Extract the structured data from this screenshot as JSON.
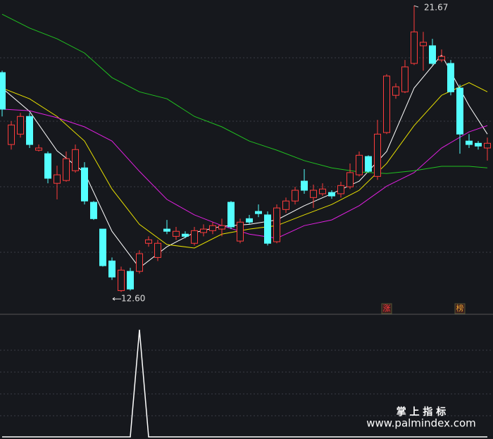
{
  "chart_data": [
    {
      "type": "candlestick",
      "up_color": "#ff3c3c",
      "down_color": "#54ffff",
      "open": [
        19.55,
        17.27,
        17.6,
        18.16,
        17.09,
        16.98,
        16.04,
        16.13,
        16.44,
        16.53,
        15.44,
        14.59,
        13.58,
        12.64,
        13.25,
        13.25,
        14.14,
        13.69,
        14.59,
        14.36,
        14.43,
        14.14,
        14.48,
        14.54,
        14.59,
        15.44,
        14.21,
        14.92,
        15.15,
        15.04,
        14.19,
        15.21,
        15.48,
        16.11,
        15.59,
        15.71,
        15.75,
        15.71,
        15.93,
        16.31,
        16.89,
        16.26,
        17.65,
        18.83,
        18.94,
        19.84,
        20.4,
        20.4,
        19.95,
        19.84,
        19.06,
        17.38,
        17.31,
        17.16
      ],
      "close": [
        18.39,
        17.89,
        18.16,
        17.27,
        17.16,
        16.2,
        16.31,
        16.82,
        17.11,
        15.48,
        14.92,
        13.43,
        13.07,
        13.29,
        12.69,
        13.81,
        14.25,
        14.14,
        14.52,
        14.52,
        14.36,
        14.54,
        14.59,
        14.7,
        14.7,
        14.66,
        14.81,
        14.81,
        15.08,
        14.14,
        15.26,
        15.48,
        15.82,
        15.82,
        15.82,
        15.86,
        15.64,
        15.97,
        16.38,
        16.93,
        16.42,
        17.6,
        19.44,
        19.1,
        19.73,
        20.84,
        20.51,
        19.84,
        20.06,
        18.94,
        17.6,
        17.27,
        17.22,
        17.31
      ],
      "high": [
        19.61,
        18.01,
        18.27,
        18.27,
        17.27,
        17.05,
        16.6,
        17.05,
        17.27,
        16.71,
        15.48,
        14.59,
        13.69,
        13.4,
        13.36,
        13.92,
        14.36,
        14.25,
        14.88,
        14.66,
        14.52,
        14.66,
        14.74,
        14.81,
        14.92,
        15.48,
        14.92,
        15.04,
        15.37,
        15.15,
        15.37,
        15.59,
        15.93,
        16.49,
        16.0,
        16.04,
        15.82,
        16.09,
        16.67,
        17.05,
        16.93,
        18.05,
        19.5,
        19.21,
        19.95,
        21.67,
        20.84,
        20.62,
        20.28,
        19.95,
        19.17,
        17.6,
        17.38,
        17.49
      ],
      "low": [
        18.16,
        17.11,
        17.49,
        17.16,
        17.05,
        16.04,
        15.53,
        16.09,
        16.38,
        15.37,
        14.88,
        13.4,
        12.98,
        12.6,
        12.64,
        13.18,
        14.03,
        13.58,
        14.43,
        14.25,
        14.3,
        14.07,
        14.36,
        14.43,
        14.36,
        14.59,
        14.14,
        14.74,
        14.97,
        14.07,
        14.14,
        15.1,
        15.37,
        15.71,
        15.26,
        15.64,
        15.55,
        15.59,
        15.86,
        16.26,
        16.38,
        16.15,
        17.6,
        18.72,
        18.9,
        19.79,
        19.61,
        19.79,
        19.88,
        18.83,
        16.98,
        17.16,
        17.11,
        16.76
      ],
      "lines": [
        {
          "color": "#ffffff",
          "x": [
            0,
            3,
            6,
            9,
            12,
            15,
            18,
            21,
            24,
            27,
            30,
            33,
            36,
            39,
            42,
            45,
            48,
            51,
            53
          ],
          "values": [
            19.06,
            18.32,
            17.07,
            16.38,
            14.52,
            13.36,
            14.03,
            14.48,
            14.68,
            14.74,
            14.88,
            15.33,
            15.71,
            16.11,
            17.05,
            19.06,
            20.11,
            18.5,
            17.6
          ]
        },
        {
          "color": "#e8e000",
          "x": [
            0,
            3,
            6,
            9,
            12,
            15,
            18,
            21,
            24,
            27,
            30,
            33,
            36,
            39,
            42,
            45,
            48,
            51,
            53
          ],
          "values": [
            19.06,
            18.72,
            18.16,
            17.38,
            15.86,
            14.74,
            14.1,
            13.99,
            14.43,
            14.59,
            14.7,
            15.04,
            15.37,
            15.82,
            16.67,
            17.87,
            18.83,
            19.23,
            18.94
          ]
        },
        {
          "color": "#e020e0",
          "x": [
            0,
            3,
            6,
            9,
            12,
            15,
            18,
            21,
            24,
            27,
            30,
            33,
            36,
            39,
            42,
            45,
            48,
            51,
            53
          ],
          "values": [
            18.39,
            18.34,
            18.12,
            17.83,
            17.38,
            16.42,
            15.53,
            15.04,
            14.7,
            14.43,
            14.3,
            14.7,
            14.88,
            15.33,
            15.95,
            16.38,
            17.16,
            17.67,
            17.87
          ]
        },
        {
          "color": "#20c020",
          "x": [
            0,
            3,
            6,
            9,
            12,
            15,
            18,
            21,
            24,
            27,
            30,
            33,
            36,
            39,
            42,
            45,
            48,
            51,
            53
          ],
          "values": [
            21.4,
            20.96,
            20.62,
            20.17,
            19.39,
            18.94,
            18.72,
            18.16,
            17.83,
            17.38,
            17.09,
            16.76,
            16.53,
            16.4,
            16.35,
            16.44,
            16.58,
            16.58,
            16.53
          ]
        }
      ],
      "annotations": [
        "21.67",
        "12.60"
      ],
      "markers": [
        {
          "text": "涨",
          "x": 42,
          "color": "#ff3c3c"
        },
        {
          "text": "榜",
          "x": 50,
          "color": "#e8a030"
        }
      ],
      "ylim": [
        11.89,
        21.85
      ]
    },
    {
      "type": "line",
      "color": "#ffffff",
      "values": [
        0,
        0,
        0,
        0,
        0,
        0,
        0,
        0,
        0,
        0,
        0,
        0,
        0,
        0,
        0,
        1,
        0,
        0,
        0,
        0,
        0,
        0,
        0,
        0,
        0,
        0,
        0,
        0,
        0,
        0,
        0,
        0,
        0,
        0,
        0,
        0,
        0,
        0,
        0,
        0,
        0,
        0,
        0,
        0,
        0,
        0,
        0,
        0,
        0,
        0,
        0,
        0,
        0,
        0
      ],
      "ylim": [
        0,
        1
      ]
    }
  ],
  "watermark": {
    "title": "掌 上 指 标",
    "url": "www.palmindex.com"
  }
}
